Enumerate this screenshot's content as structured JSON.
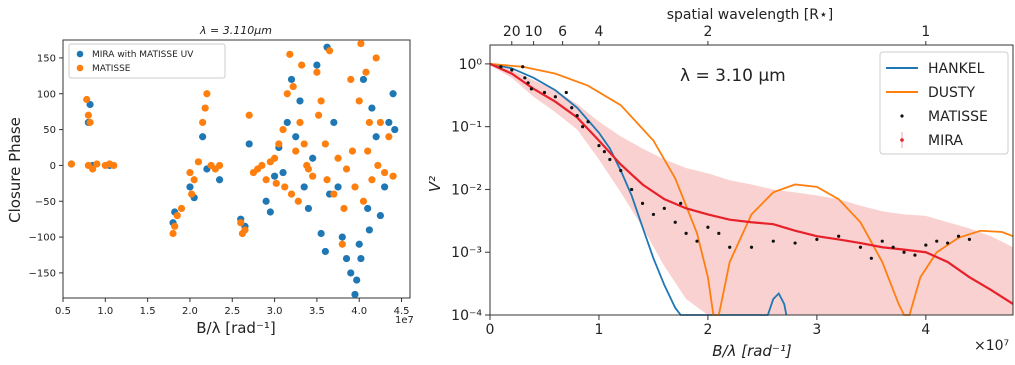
{
  "chart_data": [
    {
      "type": "scatter",
      "title": "λ = 3.110μm",
      "xlabel": "B/λ [rad⁻¹]",
      "ylabel": "Closure Phase",
      "x_scale_label": "1e7",
      "xlim": [
        0.5,
        4.6
      ],
      "ylim": [
        -185,
        175
      ],
      "x_ticks": [
        0.5,
        1.0,
        1.5,
        2.0,
        2.5,
        3.0,
        3.5,
        4.0,
        4.5
      ],
      "x_tick_labels": [
        "0.5",
        "1.0",
        "1.5",
        "2.0",
        "2.5",
        "3.0",
        "3.5",
        "4.0",
        "4.5"
      ],
      "y_ticks": [
        -150,
        -100,
        -50,
        0,
        50,
        100,
        150
      ],
      "y_tick_labels": [
        "−150",
        "−100",
        "−50",
        "0",
        "50",
        "100",
        "150"
      ],
      "legend": [
        "MIRA with MATISSE UV",
        "MATISSE"
      ],
      "legend_position": "top-left",
      "series": [
        {
          "name": "MIRA with MATISSE UV",
          "color": "#1f77b4",
          "x": [
            0.6,
            0.8,
            0.82,
            0.85,
            1.05,
            1.8,
            1.82,
            2.0,
            2.05,
            2.15,
            2.2,
            2.35,
            2.6,
            2.65,
            2.7,
            2.9,
            2.95,
            3.0,
            3.05,
            3.1,
            3.15,
            3.2,
            3.25,
            3.3,
            3.35,
            3.4,
            3.45,
            3.5,
            3.55,
            3.6,
            3.62,
            3.65,
            3.7,
            3.75,
            3.8,
            3.85,
            3.9,
            3.95,
            3.97,
            4.0,
            4.02,
            4.05,
            4.1,
            4.12,
            4.15,
            4.2,
            4.25,
            4.3,
            4.35,
            4.4,
            4.42
          ],
          "y": [
            2,
            60,
            85,
            0,
            0,
            -80,
            -65,
            -30,
            -45,
            40,
            -5,
            -20,
            -75,
            -85,
            30,
            -50,
            -65,
            -15,
            25,
            -10,
            60,
            120,
            40,
            90,
            -30,
            -60,
            10,
            140,
            -95,
            -120,
            165,
            -40,
            60,
            -30,
            -100,
            -130,
            -150,
            -180,
            -160,
            -110,
            -130,
            120,
            -60,
            -90,
            80,
            40,
            -70,
            -30,
            60,
            100,
            50
          ]
        },
        {
          "name": "MATISSE",
          "color": "#ff7f0e",
          "x": [
            0.6,
            0.78,
            0.8,
            0.82,
            0.8,
            0.85,
            0.9,
            1.0,
            1.05,
            1.1,
            1.8,
            1.82,
            1.85,
            1.9,
            2.0,
            2.02,
            2.05,
            2.1,
            2.15,
            2.18,
            2.2,
            2.25,
            2.3,
            2.35,
            2.6,
            2.62,
            2.65,
            2.7,
            2.75,
            2.8,
            2.85,
            2.9,
            2.95,
            3.0,
            3.02,
            3.05,
            3.1,
            3.12,
            3.15,
            3.18,
            3.2,
            3.22,
            3.25,
            3.28,
            3.3,
            3.32,
            3.35,
            3.38,
            3.4,
            3.45,
            3.5,
            3.52,
            3.55,
            3.6,
            3.62,
            3.65,
            3.7,
            3.75,
            3.8,
            3.82,
            3.85,
            3.9,
            3.92,
            3.95,
            4.0,
            4.02,
            4.05,
            4.08,
            4.1,
            4.12,
            4.15,
            4.2,
            4.22,
            4.25,
            4.3,
            4.35,
            4.4
          ],
          "y": [
            2,
            92,
            70,
            60,
            0,
            -5,
            2,
            0,
            2,
            0,
            -95,
            -85,
            -70,
            -60,
            -10,
            -40,
            -20,
            5,
            60,
            80,
            100,
            0,
            -5,
            0,
            -80,
            -95,
            -90,
            70,
            -10,
            -5,
            0,
            -20,
            5,
            10,
            -25,
            30,
            50,
            -30,
            100,
            155,
            -40,
            110,
            20,
            -50,
            60,
            140,
            30,
            0,
            -5,
            -15,
            130,
            70,
            90,
            30,
            -20,
            160,
            -40,
            10,
            -110,
            -60,
            -5,
            120,
            20,
            -30,
            90,
            170,
            -50,
            130,
            20,
            60,
            -20,
            150,
            0,
            60,
            -10,
            40,
            -15
          ]
        }
      ]
    },
    {
      "type": "line",
      "title": "",
      "annotation": "λ  = 3.10 μm",
      "xlabel": "B/λ [rad⁻¹]",
      "ylabel": "V²",
      "x_scale_label": "×10⁷",
      "top_axis_label": "spatial wavelength [R⋆]",
      "top_ticks": [
        20,
        10,
        6,
        4,
        2,
        1
      ],
      "top_tick_labels": [
        "20",
        "10",
        "6",
        "4",
        "2",
        "1"
      ],
      "xlim": [
        0,
        4.8
      ],
      "ylim": [
        0.0001,
        2
      ],
      "y_scale": "log",
      "x_ticks": [
        0,
        1,
        2,
        3,
        4
      ],
      "x_tick_labels": [
        "0",
        "1",
        "2",
        "3",
        "4"
      ],
      "y_ticks": [
        1,
        0.1,
        0.01,
        0.001,
        0.0001
      ],
      "y_tick_labels": [
        "10⁰",
        "10⁻¹",
        "10⁻²",
        "10⁻³",
        "10⁻⁴"
      ],
      "legend": [
        "HANKEL",
        "DUSTY",
        "MATISSE",
        "MIRA"
      ],
      "legend_position": "top-right",
      "series": [
        {
          "name": "HANKEL",
          "color": "#1f77b4",
          "x": [
            0,
            0.2,
            0.4,
            0.6,
            0.8,
            1.0,
            1.1,
            1.2,
            1.3,
            1.4,
            1.5,
            1.6,
            1.7,
            1.75,
            1.78,
            2.55,
            2.6,
            2.65,
            2.7,
            2.72
          ],
          "y": [
            1.0,
            0.85,
            0.6,
            0.38,
            0.2,
            0.08,
            0.045,
            0.02,
            0.008,
            0.0025,
            0.0008,
            0.0003,
            0.00013,
            0.0001,
            0.0001,
            0.0001,
            0.00018,
            0.00022,
            0.00015,
            0.0001
          ]
        },
        {
          "name": "DUSTY",
          "color": "#ff7f0e",
          "x": [
            0,
            0.3,
            0.6,
            0.9,
            1.2,
            1.5,
            1.7,
            1.9,
            2.0,
            2.05,
            2.1,
            2.2,
            2.4,
            2.6,
            2.8,
            3.0,
            3.2,
            3.4,
            3.6,
            3.75,
            3.8,
            3.85,
            3.95,
            4.1,
            4.3,
            4.5,
            4.7,
            4.8
          ],
          "y": [
            1.0,
            0.9,
            0.7,
            0.45,
            0.22,
            0.06,
            0.015,
            0.002,
            0.0004,
            0.0001,
            0.0001,
            0.0007,
            0.004,
            0.009,
            0.012,
            0.011,
            0.007,
            0.003,
            0.0007,
            0.00015,
            0.0001,
            0.0001,
            0.0004,
            0.001,
            0.0017,
            0.0022,
            0.0021,
            0.0018
          ]
        },
        {
          "name": "MIRA",
          "color": "#e8202a",
          "x": [
            0,
            0.2,
            0.4,
            0.6,
            0.8,
            1.0,
            1.2,
            1.4,
            1.6,
            1.8,
            2.0,
            2.2,
            2.4,
            2.6,
            2.8,
            3.0,
            3.2,
            3.4,
            3.6,
            3.8,
            4.0,
            4.2,
            4.4,
            4.6,
            4.8
          ],
          "y": [
            1.0,
            0.7,
            0.4,
            0.25,
            0.14,
            0.06,
            0.025,
            0.012,
            0.007,
            0.005,
            0.004,
            0.0033,
            0.003,
            0.0028,
            0.0022,
            0.0018,
            0.0016,
            0.0014,
            0.0012,
            0.0011,
            0.001,
            0.0007,
            0.0004,
            0.00025,
            0.00015
          ],
          "band_lower": [
            0.95,
            0.6,
            0.3,
            0.17,
            0.09,
            0.03,
            0.009,
            0.0025,
            0.0006,
            0.00018,
            0.0001,
            0.0001,
            0.0001,
            0.0001,
            0.0001,
            0.0001,
            0.0001,
            0.0001,
            0.0001,
            0.0001,
            0.0001,
            0.0001,
            0.0001,
            0.0001,
            0.0001
          ],
          "band_upper": [
            1.05,
            0.8,
            0.55,
            0.38,
            0.23,
            0.12,
            0.07,
            0.045,
            0.03,
            0.022,
            0.018,
            0.014,
            0.012,
            0.01,
            0.009,
            0.008,
            0.007,
            0.0055,
            0.0045,
            0.004,
            0.0038,
            0.003,
            0.0024,
            0.0018,
            0.0012
          ]
        },
        {
          "name": "MATISSE",
          "color": "#111111",
          "x": [
            0.1,
            0.2,
            0.3,
            0.32,
            0.35,
            0.38,
            0.5,
            0.6,
            0.7,
            0.75,
            0.8,
            0.85,
            0.9,
            1.0,
            1.05,
            1.1,
            1.2,
            1.3,
            1.4,
            1.5,
            1.6,
            1.7,
            1.75,
            1.8,
            1.9,
            2.0,
            2.1,
            2.2,
            2.4,
            2.6,
            2.8,
            3.0,
            3.2,
            3.4,
            3.5,
            3.6,
            3.7,
            3.8,
            3.9,
            4.0,
            4.1,
            4.2,
            4.3,
            4.4
          ],
          "y": [
            0.9,
            0.8,
            0.9,
            0.6,
            0.5,
            0.4,
            0.35,
            0.3,
            0.35,
            0.2,
            0.15,
            0.1,
            0.12,
            0.05,
            0.04,
            0.03,
            0.02,
            0.01,
            0.006,
            0.004,
            0.005,
            0.003,
            0.006,
            0.002,
            0.0015,
            0.0025,
            0.002,
            0.0012,
            0.0012,
            0.0015,
            0.0014,
            0.0016,
            0.0018,
            0.0012,
            0.0008,
            0.0015,
            0.0012,
            0.001,
            0.0009,
            0.0013,
            0.0015,
            0.0014,
            0.0018,
            0.0016
          ]
        }
      ]
    }
  ]
}
